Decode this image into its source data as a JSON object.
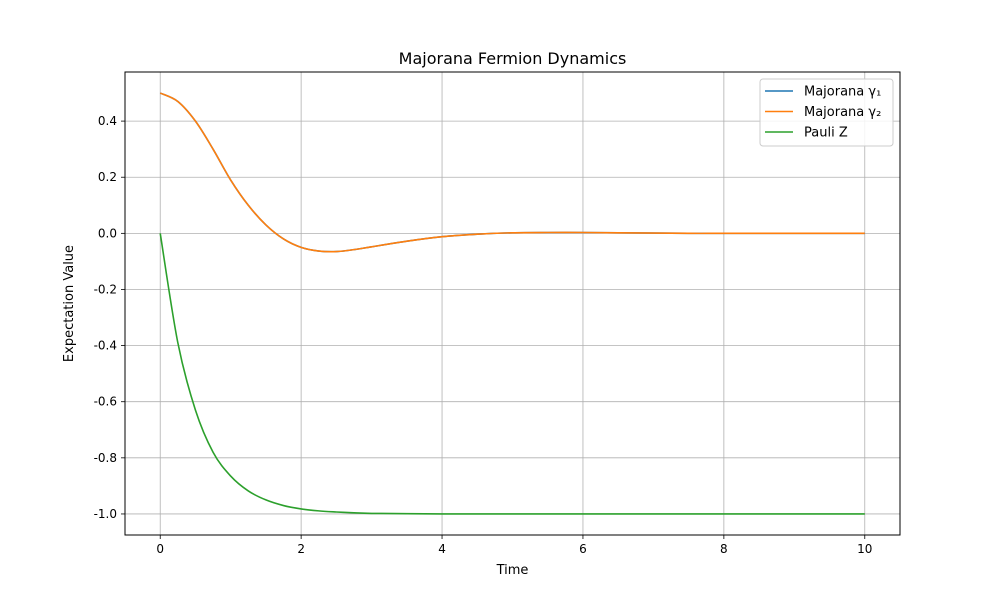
{
  "chart_data": {
    "type": "line",
    "title": "Majorana Fermion Dynamics",
    "xlabel": "Time",
    "ylabel": "Expectation Value",
    "xlim": [
      -0.5,
      10.5
    ],
    "ylim": [
      -1.075,
      0.575
    ],
    "xticks": [
      0,
      2,
      4,
      6,
      8,
      10
    ],
    "yticks": [
      -1.0,
      -0.8,
      -0.6,
      -0.4,
      -0.2,
      0.0,
      0.2,
      0.4
    ],
    "grid": true,
    "legend_position": "top-right",
    "x": [
      0,
      0.25,
      0.5,
      0.75,
      1.0,
      1.25,
      1.5,
      1.75,
      2.0,
      2.25,
      2.5,
      2.75,
      3.0,
      3.5,
      4.0,
      4.5,
      5.0,
      5.5,
      6.0,
      6.5,
      7.0,
      7.5,
      8.0,
      8.5,
      9.0,
      9.5,
      10.0
    ],
    "series": [
      {
        "name": "Majorana γ₁",
        "color": "#1f77b4",
        "values": [
          0.5,
          0.47,
          0.4,
          0.3,
          0.19,
          0.1,
          0.03,
          -0.02,
          -0.05,
          -0.063,
          -0.065,
          -0.058,
          -0.048,
          -0.028,
          -0.012,
          -0.003,
          0.002,
          0.003,
          0.003,
          0.002,
          0.001,
          0.0,
          0.0,
          0.0,
          0.0,
          0.0,
          0.0
        ]
      },
      {
        "name": "Majorana γ₂",
        "color": "#ff7f0e",
        "values": [
          0.5,
          0.47,
          0.4,
          0.3,
          0.19,
          0.1,
          0.03,
          -0.02,
          -0.05,
          -0.063,
          -0.065,
          -0.058,
          -0.048,
          -0.028,
          -0.012,
          -0.003,
          0.002,
          0.003,
          0.003,
          0.002,
          0.001,
          0.0,
          0.0,
          0.0,
          0.0,
          0.0,
          0.0
        ]
      },
      {
        "name": "Pauli Z",
        "color": "#2ca02c",
        "values": [
          0.0,
          -0.39,
          -0.63,
          -0.78,
          -0.865,
          -0.918,
          -0.95,
          -0.97,
          -0.982,
          -0.989,
          -0.993,
          -0.996,
          -0.998,
          -0.999,
          -1.0,
          -1.0,
          -1.0,
          -1.0,
          -1.0,
          -1.0,
          -1.0,
          -1.0,
          -1.0,
          -1.0,
          -1.0,
          -1.0,
          -1.0
        ]
      }
    ]
  }
}
